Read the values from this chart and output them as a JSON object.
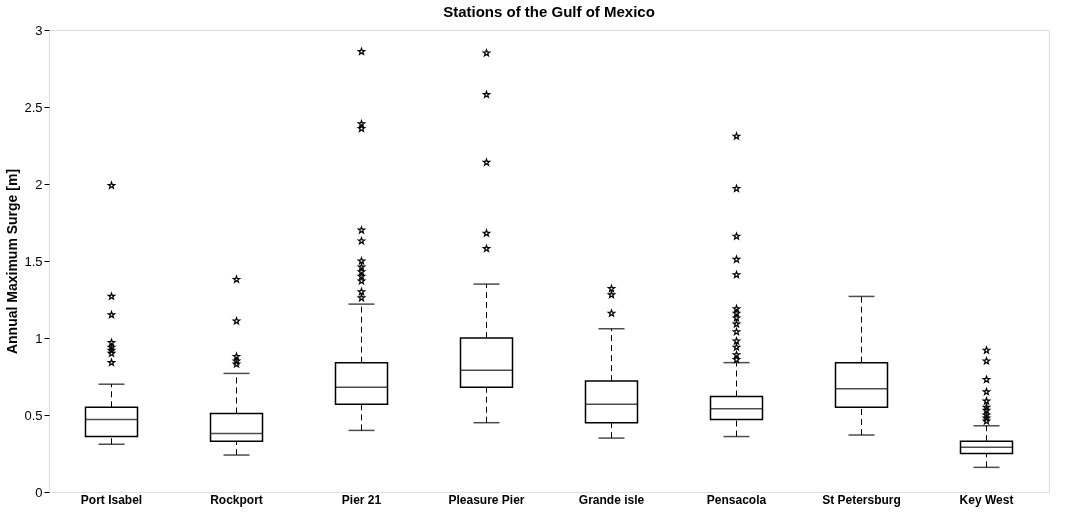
{
  "chart_data": {
    "type": "box",
    "title": "Stations of the Gulf of Mexico",
    "ylabel": "Annual Maximum Surge [m]",
    "categories": [
      "Port Isabel",
      "Rockport",
      "Pier 21",
      "Pleasure Pier",
      "Grande isle",
      "Pensacola",
      "St Petersburg",
      "Key West"
    ],
    "boxes": [
      {
        "low": 0.31,
        "q1": 0.36,
        "median": 0.47,
        "q3": 0.55,
        "high": 0.7,
        "outliers": [
          1.99,
          1.27,
          1.15,
          0.97,
          0.94,
          0.92,
          0.9,
          0.84
        ]
      },
      {
        "low": 0.24,
        "q1": 0.33,
        "median": 0.38,
        "q3": 0.51,
        "high": 0.77,
        "outliers": [
          1.38,
          1.11,
          0.88,
          0.85,
          0.83
        ]
      },
      {
        "low": 0.4,
        "q1": 0.57,
        "median": 0.68,
        "q3": 0.84,
        "high": 1.22,
        "outliers": [
          2.86,
          2.39,
          2.36,
          1.7,
          1.63,
          1.5,
          1.46,
          1.43,
          1.4,
          1.37,
          1.3,
          1.26
        ]
      },
      {
        "low": 0.45,
        "q1": 0.68,
        "median": 0.79,
        "q3": 1.0,
        "high": 1.35,
        "outliers": [
          2.85,
          2.58,
          2.14,
          1.68,
          1.58
        ]
      },
      {
        "low": 0.35,
        "q1": 0.45,
        "median": 0.57,
        "q3": 0.72,
        "high": 1.06,
        "outliers": [
          1.32,
          1.28,
          1.16
        ]
      },
      {
        "low": 0.36,
        "q1": 0.47,
        "median": 0.54,
        "q3": 0.62,
        "high": 0.84,
        "outliers": [
          2.31,
          1.97,
          1.66,
          1.51,
          1.41,
          1.19,
          1.16,
          1.13,
          1.09,
          1.04,
          0.98,
          0.94,
          0.89,
          0.86
        ]
      },
      {
        "low": 0.37,
        "q1": 0.55,
        "median": 0.67,
        "q3": 0.84,
        "high": 1.27
      },
      {
        "low": 0.16,
        "q1": 0.25,
        "median": 0.29,
        "q3": 0.33,
        "high": 0.43,
        "outliers": [
          0.92,
          0.85,
          0.73,
          0.65,
          0.59,
          0.55,
          0.53,
          0.5,
          0.48,
          0.46
        ]
      }
    ],
    "color": "#000000",
    "ylim": [
      0,
      3
    ],
    "yticks": [
      0,
      0.5,
      1,
      1.5,
      2,
      2.5,
      3
    ],
    "grid": false,
    "marker": "star",
    "line_style": "dashed"
  }
}
